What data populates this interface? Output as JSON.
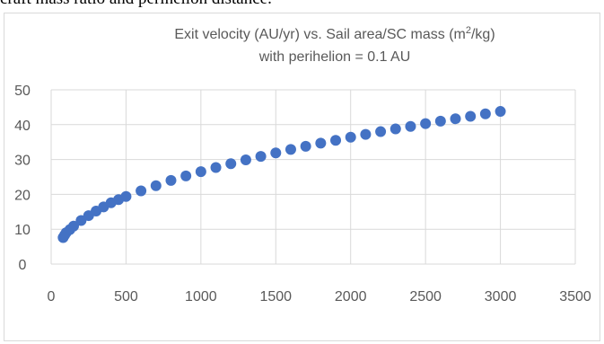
{
  "caption": "craft mass ratio and perihelion distance.",
  "chart_data": {
    "type": "scatter",
    "title_prefix": "Exit velocity (AU/yr) vs. Sail area/SC mass (m",
    "title_sup": "2",
    "title_suffix": "/kg)",
    "subtitle": "with perihelion = 0.1 AU",
    "xlabel": "",
    "ylabel": "",
    "xlim": [
      0,
      3500
    ],
    "ylim": [
      0,
      50
    ],
    "x_ticks": [
      "0",
      "500",
      "1000",
      "1500",
      "2000",
      "2500",
      "3000",
      "3500"
    ],
    "y_ticks": [
      "0",
      "10",
      "20",
      "30",
      "40",
      "50"
    ],
    "grid": true,
    "legend": "none",
    "color": "#4472c4",
    "x": [
      80,
      90,
      100,
      125,
      150,
      200,
      250,
      300,
      350,
      400,
      450,
      500,
      600,
      700,
      800,
      900,
      1000,
      1100,
      1200,
      1300,
      1400,
      1500,
      1600,
      1700,
      1800,
      1900,
      2000,
      2100,
      2200,
      2300,
      2400,
      2500,
      2600,
      2700,
      2800,
      2900,
      3000
    ],
    "y": [
      7.6,
      8.3,
      9.0,
      9.9,
      10.9,
      12.5,
      13.9,
      15.2,
      16.4,
      17.6,
      18.5,
      19.4,
      21.0,
      22.5,
      24.0,
      25.3,
      26.5,
      27.7,
      28.8,
      29.9,
      30.9,
      31.9,
      32.9,
      33.8,
      34.7,
      35.5,
      36.4,
      37.2,
      38.0,
      38.8,
      39.5,
      40.3,
      41.0,
      41.7,
      42.4,
      43.1,
      43.8
    ]
  }
}
